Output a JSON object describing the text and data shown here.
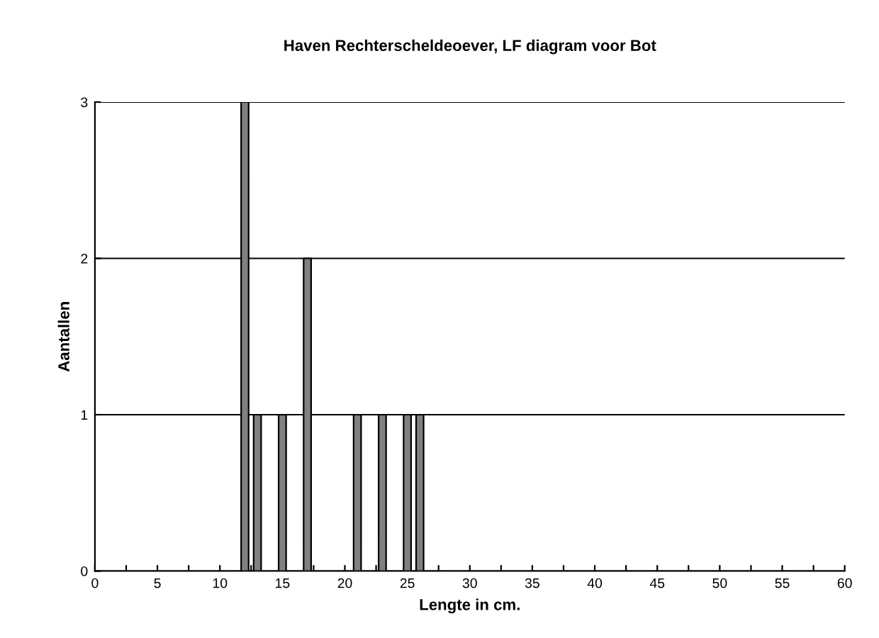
{
  "chart_data": {
    "type": "bar",
    "title": "Haven Rechterscheldeoever, LF diagram voor Bot",
    "xlabel": "Lengte in cm.",
    "ylabel": "Aantallen",
    "x": [
      12,
      13,
      15,
      17,
      21,
      23,
      25,
      26
    ],
    "values": [
      3,
      1,
      1,
      2,
      1,
      1,
      1,
      1
    ],
    "color": "#808080",
    "xlim": [
      0,
      60
    ],
    "xticks": [
      0,
      {
        "value": 2.5,
        "label": null
      },
      5,
      {
        "value": 7.5,
        "label": null
      },
      10,
      {
        "value": 12.5,
        "label": null
      },
      15,
      {
        "value": 17.5,
        "label": null
      },
      20,
      {
        "value": 22.5,
        "label": null
      },
      25,
      {
        "value": 27.5,
        "label": null
      },
      30,
      {
        "value": 32.5,
        "label": null
      },
      35,
      {
        "value": 37.5,
        "label": null
      },
      40,
      {
        "value": 42.5,
        "label": null
      },
      45,
      {
        "value": 47.5,
        "label": null
      },
      50,
      {
        "value": 52.5,
        "label": null
      },
      55,
      {
        "value": 57.5,
        "label": null
      },
      60
    ],
    "ylim": [
      0,
      3
    ],
    "yticks": [
      0,
      1,
      2,
      3
    ],
    "grid": "y"
  }
}
